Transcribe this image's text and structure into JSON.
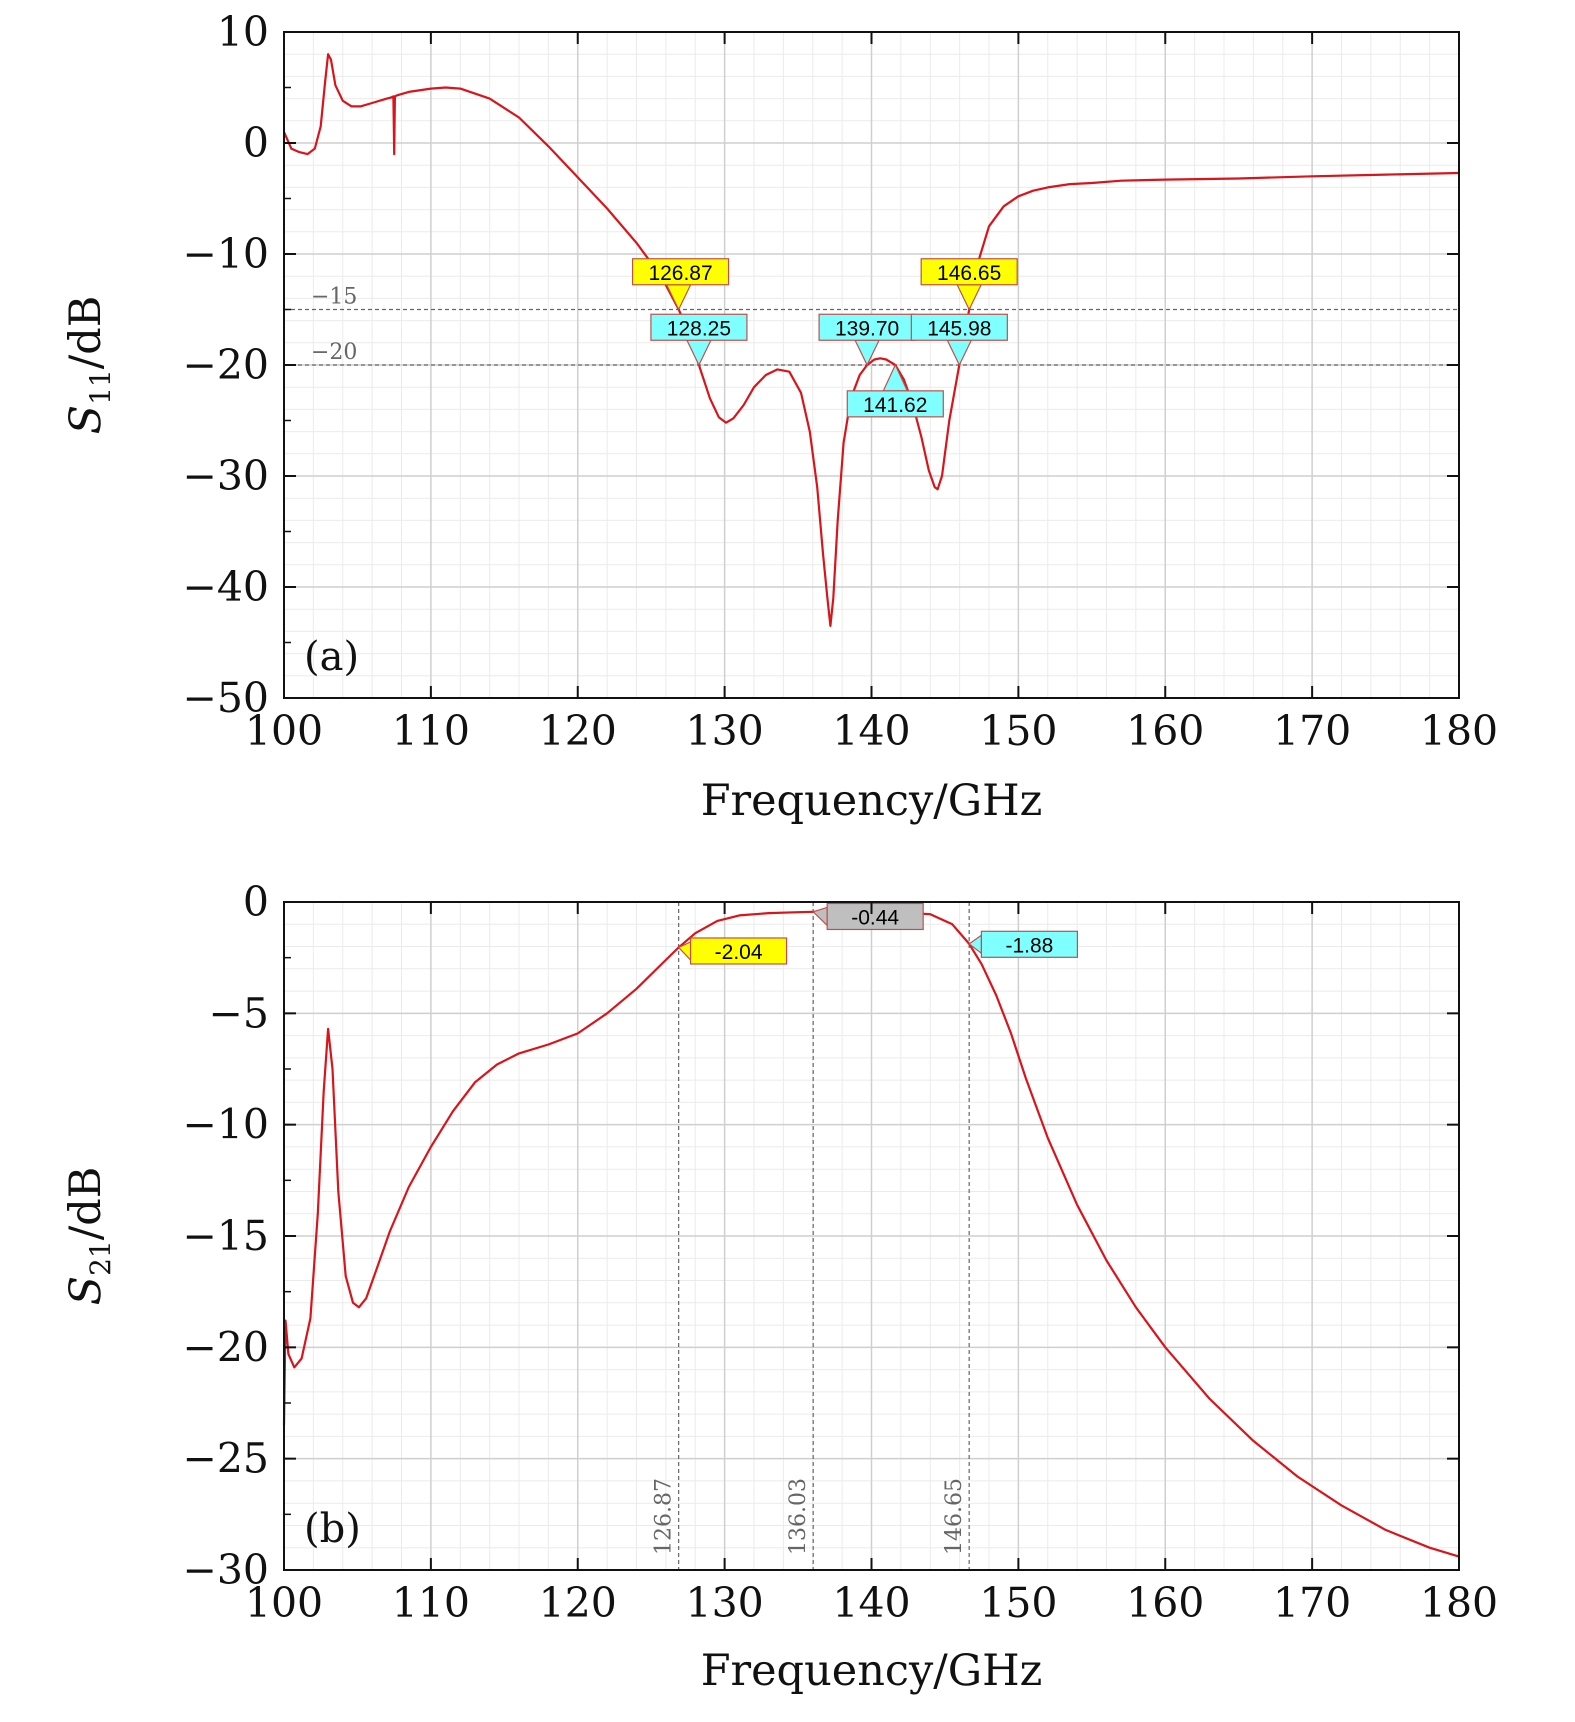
{
  "colors": {
    "curve": "#d9141a",
    "marker_yellow": "#ffff00",
    "marker_cyan": "#80ffff",
    "marker_gray": "#bfbfbf",
    "marker_border": "#c0504d"
  },
  "chart_data": [
    {
      "id": "a",
      "type": "line",
      "panel_label": "(a)",
      "xlabel": "Frequency/GHz",
      "ylabel_main": "S",
      "ylabel_sub": "11",
      "ylabel_unit": "/dB",
      "xlim": [
        100,
        180
      ],
      "ylim": [
        -50,
        10
      ],
      "xticks": [
        100,
        110,
        120,
        130,
        140,
        150,
        160,
        170,
        180
      ],
      "yticks": [
        10,
        0,
        -10,
        -20,
        -30,
        -40,
        -50
      ],
      "ytick_labels": [
        "10",
        "0",
        "−10",
        "−20",
        "−30",
        "−40",
        "−50"
      ],
      "grid": true,
      "series": [
        {
          "name": "S11",
          "x": [
            100,
            100.5,
            101,
            101.6,
            102.1,
            102.5,
            102.8,
            103.0,
            103.2,
            103.5,
            104,
            104.6,
            105.2,
            106,
            107,
            107.3,
            107.45,
            107.5,
            107.55,
            107.7,
            108.5,
            110,
            111,
            112,
            114,
            116,
            118,
            120,
            122,
            124,
            125,
            126,
            126.87,
            127.5,
            128.25,
            129,
            129.6,
            130.1,
            130.6,
            131.3,
            132,
            132.8,
            133.6,
            134.4,
            135.2,
            135.8,
            136.3,
            136.7,
            137.0,
            137.2,
            137.4,
            137.7,
            138.1,
            138.6,
            139.2,
            139.7,
            140.2,
            140.6,
            141.0,
            141.62,
            142.2,
            142.8,
            143.4,
            143.9,
            144.3,
            144.5,
            144.8,
            145.3,
            145.98,
            146.65,
            147.2,
            148,
            149,
            150,
            151,
            152,
            153.5,
            155,
            157,
            160,
            165,
            170,
            175,
            180
          ],
          "values": [
            1.0,
            -0.5,
            -0.8,
            -1.0,
            -0.5,
            1.5,
            5.5,
            8.0,
            7.5,
            5.2,
            3.8,
            3.3,
            3.3,
            3.6,
            4.0,
            4.1,
            4.2,
            -1.0,
            4.2,
            4.3,
            4.6,
            4.9,
            5.0,
            4.9,
            4.0,
            2.3,
            -0.3,
            -3.1,
            -5.9,
            -9.0,
            -10.8,
            -12.8,
            -15.0,
            -16.9,
            -20.0,
            -23.0,
            -24.7,
            -25.2,
            -24.8,
            -23.6,
            -22.0,
            -20.9,
            -20.4,
            -20.6,
            -22.5,
            -26.0,
            -31.0,
            -37.0,
            -41.0,
            -43.5,
            -41.0,
            -34.0,
            -27.0,
            -23.0,
            -20.9,
            -20.0,
            -19.5,
            -19.4,
            -19.5,
            -20.0,
            -21.3,
            -23.5,
            -26.5,
            -29.5,
            -31.0,
            -31.2,
            -30.0,
            -25.0,
            -20.0,
            -15.0,
            -11.0,
            -7.5,
            -5.7,
            -4.8,
            -4.3,
            -4.0,
            -3.7,
            -3.6,
            -3.4,
            -3.3,
            -3.2,
            -3.0,
            -2.85,
            -2.7
          ]
        }
      ],
      "reference_lines": [
        {
          "y": -15,
          "label": "−15"
        },
        {
          "y": -20,
          "label": "−20"
        }
      ],
      "markers": [
        {
          "label": "126.87",
          "x": 126.87,
          "y": -15.0,
          "color": "yellow",
          "dir": "down",
          "box_x": 127.0,
          "box_y": -11.6
        },
        {
          "label": "146.65",
          "x": 146.65,
          "y": -15.0,
          "color": "yellow",
          "dir": "down",
          "box_x": 146.65,
          "box_y": -11.6
        },
        {
          "label": "128.25",
          "x": 128.25,
          "y": -20.0,
          "color": "cyan",
          "dir": "down",
          "box_x": 128.25,
          "box_y": -16.6
        },
        {
          "label": "139.70",
          "x": 139.7,
          "y": -20.0,
          "color": "cyan",
          "dir": "down",
          "box_x": 139.7,
          "box_y": -16.6
        },
        {
          "label": "145.98",
          "x": 145.98,
          "y": -20.0,
          "color": "cyan",
          "dir": "down",
          "box_x": 145.98,
          "box_y": -16.6
        },
        {
          "label": "141.62",
          "x": 141.62,
          "y": -20.0,
          "color": "cyan",
          "dir": "up",
          "box_x": 141.62,
          "box_y": -23.5
        }
      ]
    },
    {
      "id": "b",
      "type": "line",
      "panel_label": "(b)",
      "xlabel": "Frequency/GHz",
      "ylabel_main": "S",
      "ylabel_sub": "21",
      "ylabel_unit": "/dB",
      "xlim": [
        100,
        180
      ],
      "ylim": [
        -30,
        0
      ],
      "xticks": [
        100,
        110,
        120,
        130,
        140,
        150,
        160,
        170,
        180
      ],
      "yticks": [
        0,
        -5,
        -10,
        -15,
        -20,
        -25,
        -30
      ],
      "ytick_labels": [
        "0",
        "−5",
        "−10",
        "−15",
        "−20",
        "−25",
        "−30"
      ],
      "grid": true,
      "series": [
        {
          "name": "S21",
          "x": [
            100,
            100.1,
            100.3,
            100.7,
            101.2,
            101.8,
            102.3,
            102.7,
            103.0,
            103.3,
            103.7,
            104.2,
            104.7,
            105.1,
            105.6,
            106.3,
            107.2,
            108.5,
            110,
            111.5,
            113,
            114.5,
            116,
            118,
            120,
            122,
            124,
            126,
            126.87,
            128,
            129.5,
            131,
            133,
            135,
            136.03,
            138,
            140,
            142,
            144,
            145.5,
            146.65,
            147.5,
            148.5,
            149.5,
            150.5,
            152,
            154,
            156,
            158,
            160,
            163,
            166,
            169,
            172,
            175,
            178,
            180
          ],
          "values": [
            -23.5,
            -18.8,
            -20.3,
            -20.9,
            -20.5,
            -18.7,
            -14.0,
            -8.5,
            -5.7,
            -7.5,
            -13.0,
            -16.8,
            -18.0,
            -18.2,
            -17.8,
            -16.5,
            -14.8,
            -12.8,
            -11.0,
            -9.4,
            -8.1,
            -7.3,
            -6.8,
            -6.4,
            -5.9,
            -5.0,
            -3.9,
            -2.6,
            -2.04,
            -1.4,
            -0.85,
            -0.6,
            -0.5,
            -0.46,
            -0.44,
            -0.44,
            -0.45,
            -0.47,
            -0.55,
            -1.0,
            -1.88,
            -2.8,
            -4.2,
            -5.9,
            -7.9,
            -10.6,
            -13.6,
            -16.1,
            -18.2,
            -20.0,
            -22.3,
            -24.2,
            -25.8,
            -27.1,
            -28.2,
            -29.0,
            -29.4
          ]
        }
      ],
      "reference_lines": [
        {
          "x": 126.87,
          "label": "126.87"
        },
        {
          "x": 136.03,
          "label": "136.03"
        },
        {
          "x": 146.65,
          "label": "146.65"
        }
      ],
      "markers": [
        {
          "label": "-2.04",
          "x": 126.87,
          "y": -2.04,
          "color": "yellow",
          "dir": "left",
          "box_x": 128.5,
          "box_y": -2.2
        },
        {
          "label": "-0.44",
          "x": 136.03,
          "y": -0.44,
          "color": "gray",
          "dir": "left",
          "box_x": 137.8,
          "box_y": -0.65
        },
        {
          "label": "-1.88",
          "x": 146.65,
          "y": -1.88,
          "color": "cyan",
          "dir": "left",
          "box_x": 148.3,
          "box_y": -1.9
        }
      ]
    }
  ]
}
